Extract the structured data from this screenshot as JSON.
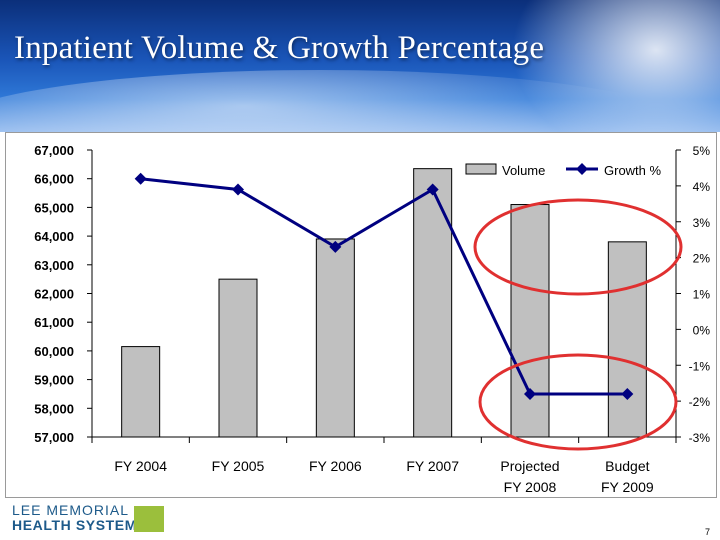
{
  "slide": {
    "title": "Inpatient Volume & Growth Percentage",
    "page_number": "7",
    "logo": {
      "line1": "LEE MEMORIAL",
      "line2": "HEALTH SYSTEM"
    }
  },
  "colors": {
    "bar": "#c0c0c0",
    "line": "#000080",
    "highlight": "#e03030",
    "header": "#1a55b8"
  },
  "chart_data": {
    "type": "bar",
    "categories": [
      [
        "FY 2004"
      ],
      [
        "FY 2005"
      ],
      [
        "FY 2006"
      ],
      [
        "FY 2007"
      ],
      [
        "Projected",
        "FY 2008"
      ],
      [
        "Budget",
        "FY 2009"
      ]
    ],
    "series": [
      {
        "name": "Volume",
        "type": "bar",
        "axis": "left",
        "values": [
          60150,
          62500,
          63900,
          66350,
          65100,
          63800
        ]
      },
      {
        "name": "Growth %",
        "type": "line",
        "axis": "right",
        "values": [
          4.2,
          3.9,
          2.3,
          3.9,
          -1.8,
          -1.8
        ]
      }
    ],
    "y_left": {
      "min": 57000,
      "max": 67000,
      "ticks": [
        "67,000",
        "66,000",
        "65,000",
        "64,000",
        "63,000",
        "62,000",
        "61,000",
        "60,000",
        "59,000",
        "58,000",
        "57,000"
      ]
    },
    "y_right": {
      "min": -3,
      "max": 5,
      "ticks": [
        "5%",
        "4%",
        "3%",
        "2%",
        "1%",
        "0%",
        "-1%",
        "-2%",
        "-3%"
      ]
    },
    "legend_position": "top-right",
    "annotations": [
      "circle around projected/budget volume bars",
      "circle around projected/budget growth points"
    ]
  }
}
